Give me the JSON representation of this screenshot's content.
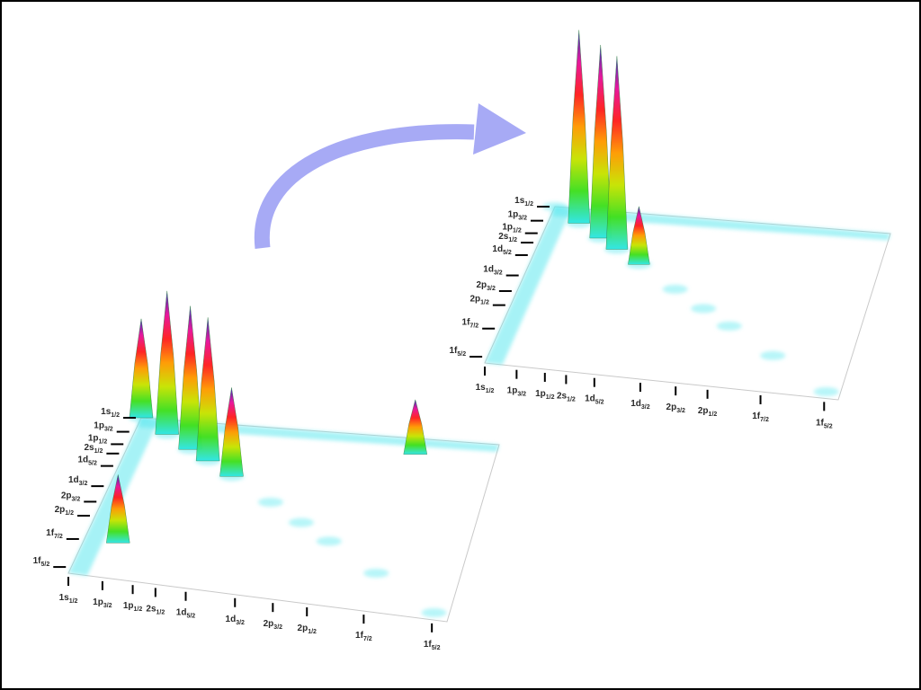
{
  "chart_data": [
    {
      "type": "heatmap",
      "view": "3d-surface",
      "panel": "left",
      "title": "",
      "xlabel": "",
      "ylabel": "",
      "axis_labels": [
        {
          "main": "1s",
          "sub": "1/2"
        },
        {
          "main": "1p",
          "sub": "3/2"
        },
        {
          "main": "1p",
          "sub": "1/2"
        },
        {
          "main": "2s",
          "sub": "1/2"
        },
        {
          "main": "1d",
          "sub": "5/2"
        },
        {
          "main": "1d",
          "sub": "3/2"
        },
        {
          "main": "2p",
          "sub": "3/2"
        },
        {
          "main": "2p",
          "sub": "1/2"
        },
        {
          "main": "1f",
          "sub": "7/2"
        },
        {
          "main": "1f",
          "sub": "5/2"
        }
      ],
      "peaks": [
        {
          "i": 0,
          "j": 0,
          "height": 0.58
        },
        {
          "i": 1,
          "j": 1,
          "height": 0.84
        },
        {
          "i": 2,
          "j": 2,
          "height": 0.84
        },
        {
          "i": 3,
          "j": 3,
          "height": 0.84
        },
        {
          "i": 4,
          "j": 4,
          "height": 0.52
        },
        {
          "i": 8,
          "j": 1,
          "height": 0.32
        },
        {
          "i": 1,
          "j": 8,
          "height": 0.4
        }
      ]
    },
    {
      "type": "heatmap",
      "view": "3d-surface",
      "panel": "right",
      "title": "",
      "xlabel": "",
      "ylabel": "",
      "axis_labels": [
        {
          "main": "1s",
          "sub": "1/2"
        },
        {
          "main": "1p",
          "sub": "3/2"
        },
        {
          "main": "1p",
          "sub": "1/2"
        },
        {
          "main": "2s",
          "sub": "1/2"
        },
        {
          "main": "1d",
          "sub": "5/2"
        },
        {
          "main": "1d",
          "sub": "3/2"
        },
        {
          "main": "2p",
          "sub": "3/2"
        },
        {
          "main": "2p",
          "sub": "1/2"
        },
        {
          "main": "1f",
          "sub": "7/2"
        },
        {
          "main": "1f",
          "sub": "5/2"
        }
      ],
      "peaks": [
        {
          "i": 1,
          "j": 1,
          "height": 1.0
        },
        {
          "i": 2,
          "j": 2,
          "height": 1.0
        },
        {
          "i": 3,
          "j": 3,
          "height": 1.0
        },
        {
          "i": 4,
          "j": 4,
          "height": 0.3
        }
      ]
    }
  ],
  "colors": {
    "arrow": "#a7aaf5",
    "base_surface": "#5fe8ef",
    "frame": "#000000",
    "colormap": [
      "#2fe6e6",
      "#3fe01e",
      "#c7e400",
      "#ff9a00",
      "#ff1e1e",
      "#e8109a",
      "#2a2fb5"
    ]
  },
  "arrow": {
    "direction": "left-to-right"
  }
}
